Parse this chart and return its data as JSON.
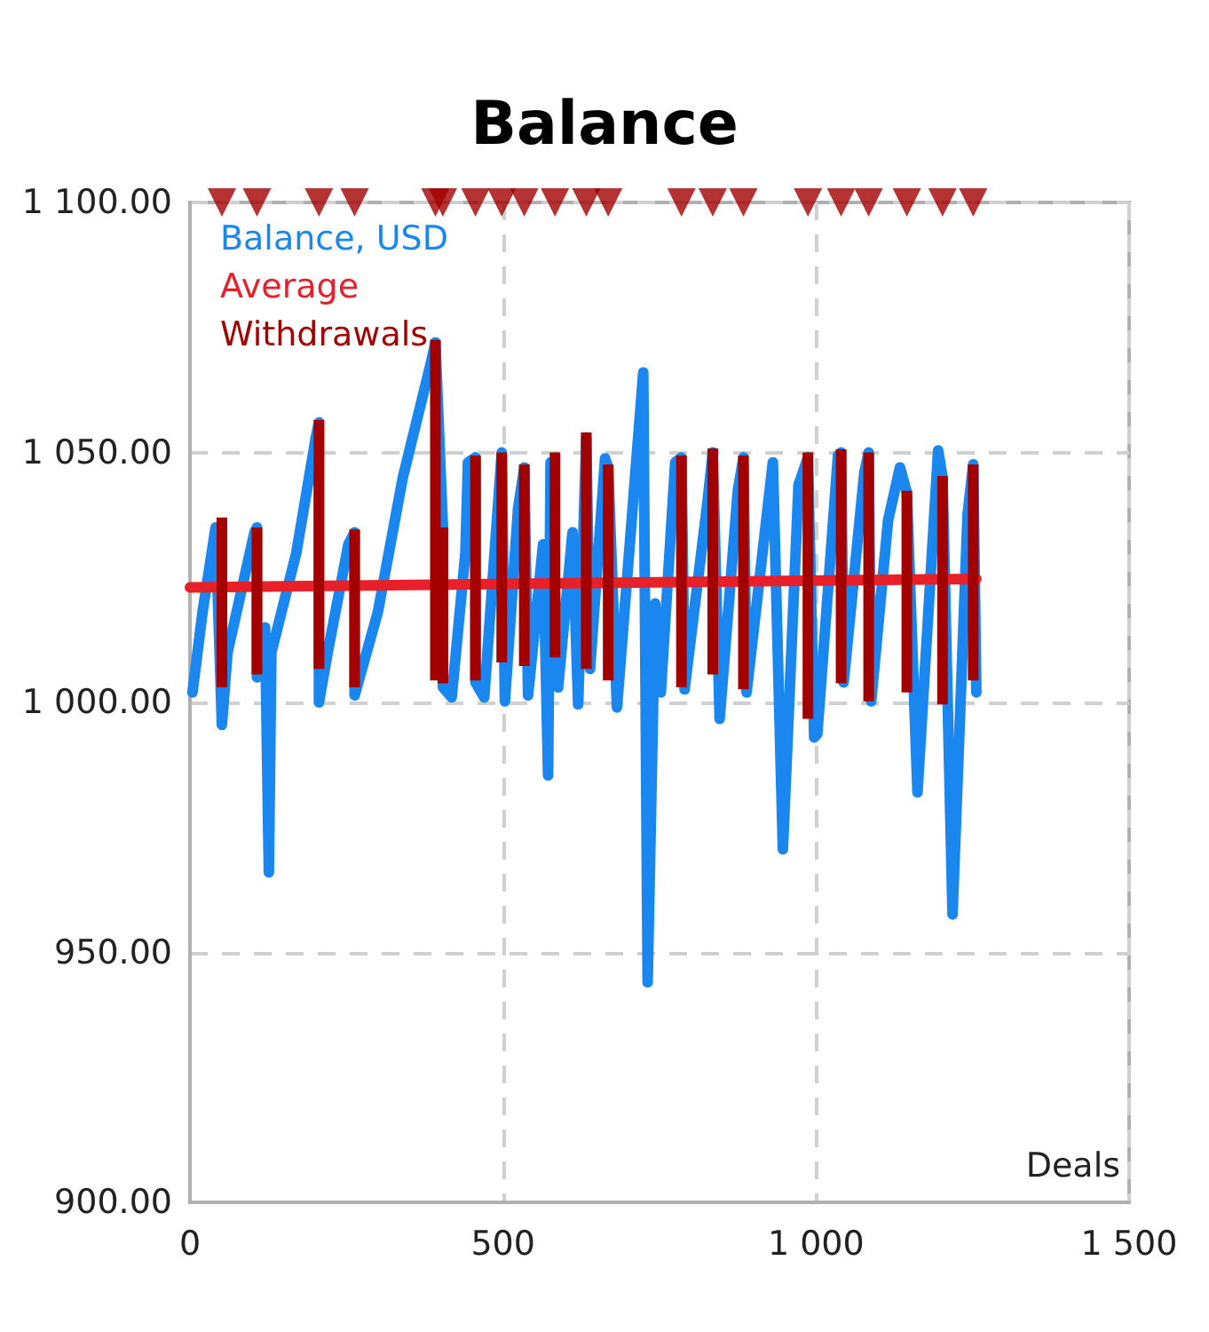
{
  "chart_data": {
    "type": "line",
    "title": "Balance",
    "xlabel": "Deals",
    "xlim": [
      0,
      1500
    ],
    "xticks": [
      0,
      500,
      {
        "value": 1000,
        "label": "1 000"
      },
      {
        "value": 1500,
        "label": "1 500"
      }
    ],
    "ylim": [
      900,
      1100
    ],
    "yticks": [
      {
        "value": 900,
        "label": "900.00"
      },
      {
        "value": 950,
        "label": "950.00"
      },
      {
        "value": 1000,
        "label": "1 000.00"
      },
      {
        "value": 1050,
        "label": "1 050.00"
      },
      {
        "value": 1100,
        "label": "1 100.00"
      }
    ],
    "grid": true,
    "legend": "top left",
    "marker": "none",
    "series": [
      {
        "name": "Balance, USD",
        "color": "#1a86f0",
        "x": [
          4,
          20,
          41,
          51,
          60,
          103,
          107,
          107,
          120,
          126,
          130,
          170,
          201,
          206,
          206,
          220,
          253,
          263,
          263,
          300,
          340,
          385,
          392,
          404,
          404,
          418,
          440,
          444,
          456,
          456,
          470,
          498,
          503,
          524,
          534,
          540,
          564,
          572,
          576,
          588,
          611,
          620,
          633,
          639,
          663,
          668,
          682,
          724,
          731,
          743,
          752,
          775,
          785,
          790,
          827,
          835,
          846,
          875,
          884,
          889,
          931,
          947,
          972,
          987,
          997,
          1002,
          1035,
          1040,
          1044,
          1077,
          1084,
          1088,
          1115,
          1134,
          1145,
          1162,
          1195,
          1202,
          1218,
          1242,
          1251,
          1256
        ],
        "values": [
          1002,
          1018,
          1035,
          995.5,
          1010,
          1034,
          1035,
          1005,
          1015,
          966,
          1010,
          1030,
          1053,
          1056,
          1000,
          1010,
          1031.6,
          1034,
          1001.4,
          1018,
          1045,
          1068,
          1072,
          1035,
          1003,
          1001,
          1030,
          1048,
          1049,
          1004,
          1001,
          1050,
          1000.2,
          1038.7,
          1047,
          1001.4,
          1031.6,
          985.4,
          1048,
          1003,
          1034,
          999.6,
          1053,
          1006.7,
          1048.8,
          1047,
          999,
          1066,
          944,
          1019.8,
          1002,
          1048,
          1049,
          1002.6,
          1040.5,
          1050,
          996.7,
          1042.3,
          1049,
          1002,
          1048,
          970.6,
          1043.5,
          1049,
          993,
          993.7,
          1049.4,
          1050,
          1004,
          1045.9,
          1050,
          1000.2,
          1036.4,
          1047,
          1042,
          982,
          1050.4,
          1045,
          957.6,
          1037.6,
          1047.6,
          1002
        ]
      },
      {
        "name": "Average",
        "color": "#e8202a",
        "x": [
          0,
          1256
        ],
        "values": [
          1023,
          1024.7
        ]
      },
      {
        "name": "Withdrawals",
        "type": "bar",
        "color": "#a30000",
        "x": [
          51,
          107,
          206,
          263,
          392,
          404,
          456,
          498,
          534,
          583,
          633,
          668,
          785,
          835,
          884,
          987,
          1040,
          1084,
          1145,
          1202,
          1251
        ],
        "base": [
          1003,
          1005.6,
          1006.7,
          1003,
          1004.4,
          1003.8,
          1004.4,
          1008,
          1007.3,
          1009,
          1006.7,
          1004.4,
          1003,
          1005.6,
          1002.6,
          996.7,
          1003.8,
          1000.2,
          1002,
          999.6,
          1004.4
        ],
        "values": [
          34,
          29.4,
          49.8,
          31.6,
          68.1,
          31.2,
          45,
          42,
          40.3,
          41,
          47.3,
          43.2,
          46.4,
          45.2,
          46.8,
          53.3,
          46.8,
          49.8,
          40.3,
          45.7,
          43.2
        ]
      },
      {
        "type": "scatter",
        "color": "#a30000",
        "marker": "triangle",
        "x": [
          51,
          107,
          206,
          263,
          392,
          404,
          456,
          498,
          534,
          583,
          633,
          668,
          785,
          835,
          884,
          987,
          1040,
          1084,
          1145,
          1202,
          1251
        ],
        "values": [
          1100,
          1100,
          1100,
          1100,
          1100,
          1100,
          1100,
          1100,
          1100,
          1100,
          1100,
          1100,
          1100,
          1100,
          1100,
          1100,
          1100,
          1100,
          1100,
          1100,
          1100
        ]
      }
    ]
  }
}
